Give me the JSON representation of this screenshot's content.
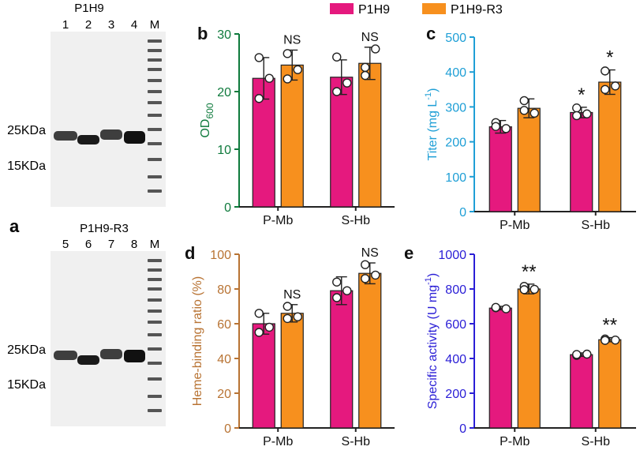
{
  "legend": {
    "items": [
      {
        "name": "P1H9",
        "color": "#e5197e"
      },
      {
        "name": "P1H9-R3",
        "color": "#f7901e"
      }
    ]
  },
  "gels": [
    {
      "panel_label": "",
      "title": "P1H9",
      "lanes": [
        "1",
        "2",
        "3",
        "4",
        "M"
      ],
      "markers": [
        "25KDa",
        "15KDa"
      ]
    },
    {
      "panel_label": "a",
      "title": "P1H9-R3",
      "lanes": [
        "5",
        "6",
        "7",
        "8",
        "M"
      ],
      "markers": [
        "25KDa",
        "15KDa"
      ]
    }
  ],
  "chart_data": [
    {
      "type": "bar",
      "panel_label": "b",
      "categories": [
        "P-Mb",
        "S-Hb"
      ],
      "series": [
        {
          "name": "P1H9",
          "values": [
            22.3,
            22.5
          ],
          "errors": [
            3.6,
            3.0
          ],
          "points": [
            [
              25.9,
              22.3,
              18.8
            ],
            [
              26.0,
              21.5,
              20.0
            ]
          ]
        },
        {
          "name": "P1H9-R3",
          "values": [
            24.6,
            24.9
          ],
          "errors": [
            2.6,
            2.8
          ],
          "points": [
            [
              26.6,
              23.8,
              22.2
            ],
            [
              22.8,
              27.4,
              24.2
            ]
          ]
        }
      ],
      "annotations": [
        "NS",
        "NS"
      ],
      "ylabel": "OD",
      "ylabel_sub": "600",
      "ylabel_color": "#0e7a3c",
      "ylim": [
        0,
        30
      ],
      "yticks": [
        "0",
        "10",
        "20",
        "30"
      ]
    },
    {
      "type": "bar",
      "panel_label": "c",
      "categories": [
        "P-Mb",
        "S-Hb"
      ],
      "series": [
        {
          "name": "P1H9",
          "values": [
            243,
            284
          ],
          "errors": [
            18,
            15
          ],
          "points": [
            [
              255,
              238,
              244
            ],
            [
              297,
              280,
              275
            ]
          ]
        },
        {
          "name": "P1H9-R3",
          "values": [
            296,
            371
          ],
          "errors": [
            27,
            35
          ],
          "points": [
            [
              318,
              282,
              290
            ],
            [
              403,
              360,
              350
            ]
          ]
        }
      ],
      "annotations": [
        "",
        "",
        "*",
        "*"
      ],
      "ylabel": "Titer (mg L",
      "ylabel_sup": "-1",
      "ylabel_end": ")",
      "ylabel_color": "#1f9fd6",
      "ylim": [
        0,
        500
      ],
      "yticks": [
        "0",
        "100",
        "200",
        "300",
        "400",
        "500"
      ]
    },
    {
      "type": "bar",
      "panel_label": "d",
      "categories": [
        "P-Mb",
        "S-Hb"
      ],
      "series": [
        {
          "name": "P1H9",
          "values": [
            60,
            79
          ],
          "errors": [
            6,
            8
          ],
          "points": [
            [
              66,
              58,
              55
            ],
            [
              84,
              79,
              75
            ]
          ]
        },
        {
          "name": "P1H9-R3",
          "values": [
            66,
            89
          ],
          "errors": [
            5,
            6
          ],
          "points": [
            [
              70,
              64,
              63
            ],
            [
              94,
              88,
              86
            ]
          ]
        }
      ],
      "annotations": [
        "NS",
        "NS"
      ],
      "ylabel": "Heme-binding ratio (%)",
      "ylabel_color": "#b87333",
      "ylim": [
        0,
        100
      ],
      "yticks": [
        "0",
        "20",
        "40",
        "60",
        "80",
        "100"
      ]
    },
    {
      "type": "bar",
      "panel_label": "e",
      "categories": [
        "P-Mb",
        "S-Hb"
      ],
      "series": [
        {
          "name": "P1H9",
          "values": [
            690,
            422
          ],
          "errors": [
            10,
            10
          ],
          "points": [
            [
              692,
              686,
              694
            ],
            [
              418,
              425,
              423
            ]
          ]
        },
        {
          "name": "P1H9-R3",
          "values": [
            800,
            508
          ],
          "errors": [
            28,
            12
          ],
          "points": [
            [
              815,
              798,
              796
            ],
            [
              512,
              506,
              504
            ]
          ]
        }
      ],
      "annotations": [
        "**",
        "**"
      ],
      "ylabel": "Specific activity (U mg",
      "ylabel_sup": "-1",
      "ylabel_end": ")",
      "ylabel_color": "#2a1ed6",
      "ylim": [
        0,
        1000
      ],
      "yticks": [
        "0",
        "200",
        "400",
        "600",
        "800",
        "1000"
      ]
    }
  ]
}
